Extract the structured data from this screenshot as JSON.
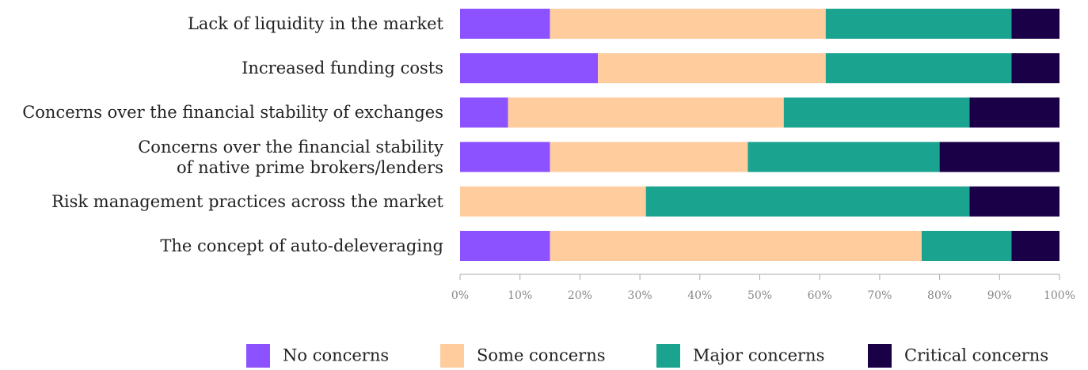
{
  "chart_data": {
    "type": "stacked_barh",
    "categories": [
      "Lack of liquidity in the market",
      "Increased funding costs",
      "Concerns over the financial stability of exchanges",
      "Concerns over the financial stability\nof native prime brokers/lenders",
      "Risk management practices across the market",
      "The concept of auto-deleveraging"
    ],
    "series": [
      {
        "name": "No concerns",
        "color": "#8c52ff",
        "values": [
          15,
          23,
          8,
          15,
          0,
          15
        ]
      },
      {
        "name": "Some concerns",
        "color": "#ffcc9e",
        "values": [
          46,
          38,
          46,
          33,
          31,
          62
        ]
      },
      {
        "name": "Major concerns",
        "color": "#1aa38f",
        "values": [
          31,
          31,
          31,
          32,
          54,
          15
        ]
      },
      {
        "name": "Critical concerns",
        "color": "#1a0047",
        "values": [
          8,
          8,
          15,
          20,
          15,
          8
        ]
      }
    ],
    "xlim": [
      0,
      100
    ],
    "xticks": [
      {
        "value": 0,
        "label": "0%"
      },
      {
        "value": 10,
        "label": "10%"
      },
      {
        "value": 20,
        "label": "20%"
      },
      {
        "value": 30,
        "label": "30%"
      },
      {
        "value": 40,
        "label": "40%"
      },
      {
        "value": 50,
        "label": "50%"
      },
      {
        "value": 60,
        "label": "60%"
      },
      {
        "value": 70,
        "label": "70%"
      },
      {
        "value": 80,
        "label": "80%"
      },
      {
        "value": 90,
        "label": "90%"
      },
      {
        "value": 100,
        "label": "100%"
      }
    ],
    "legend": "bottom"
  }
}
